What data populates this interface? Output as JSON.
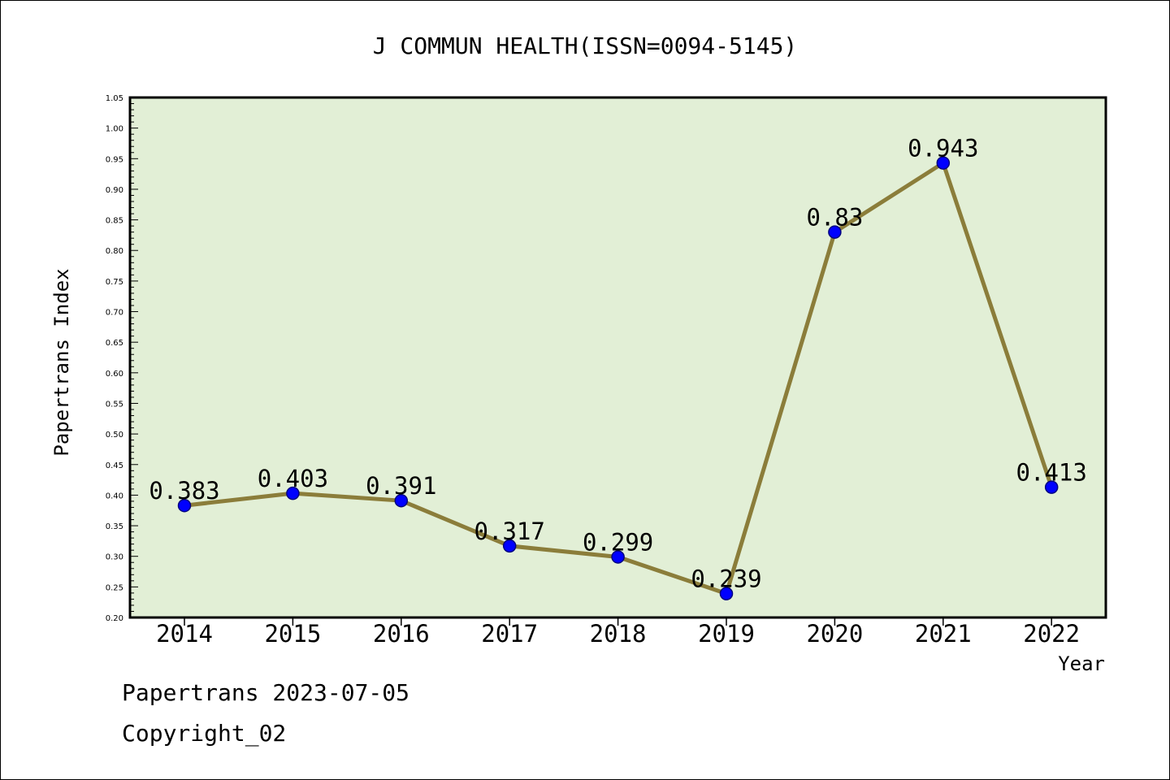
{
  "colors": {
    "plot_background": "#e2efd6",
    "line": "#8b7d3a",
    "marker_fill": "#0000ff",
    "marker_stroke": "#000080",
    "axis": "#000000"
  },
  "footer": {
    "line1": "Papertrans 2023-07-05",
    "line2": "Copyright_02"
  },
  "chart_data": {
    "type": "line",
    "title": "J COMMUN HEALTH(ISSN=0094-5145)",
    "xlabel": "Year",
    "ylabel": "Papertrans Index",
    "categories": [
      "2014",
      "2015",
      "2016",
      "2017",
      "2018",
      "2019",
      "2020",
      "2021",
      "2022"
    ],
    "series": [
      {
        "values": [
          0.383,
          0.403,
          0.391,
          0.317,
          0.299,
          0.239,
          0.83,
          0.943,
          0.413
        ],
        "labels": [
          "0.383",
          "0.403",
          "0.391",
          "0.317",
          "0.299",
          "0.239",
          "0.83",
          "0.943",
          "0.413"
        ]
      }
    ],
    "ylim": [
      0.2,
      1.05
    ],
    "yticks": [
      "0.20",
      "0.25",
      "0.30",
      "0.35",
      "0.40",
      "0.45",
      "0.50",
      "0.55",
      "0.60",
      "0.65",
      "0.70",
      "0.75",
      "0.80",
      "0.85",
      "0.90",
      "0.95",
      "1.00",
      "1.05"
    ],
    "grid": false,
    "legend": "none"
  }
}
